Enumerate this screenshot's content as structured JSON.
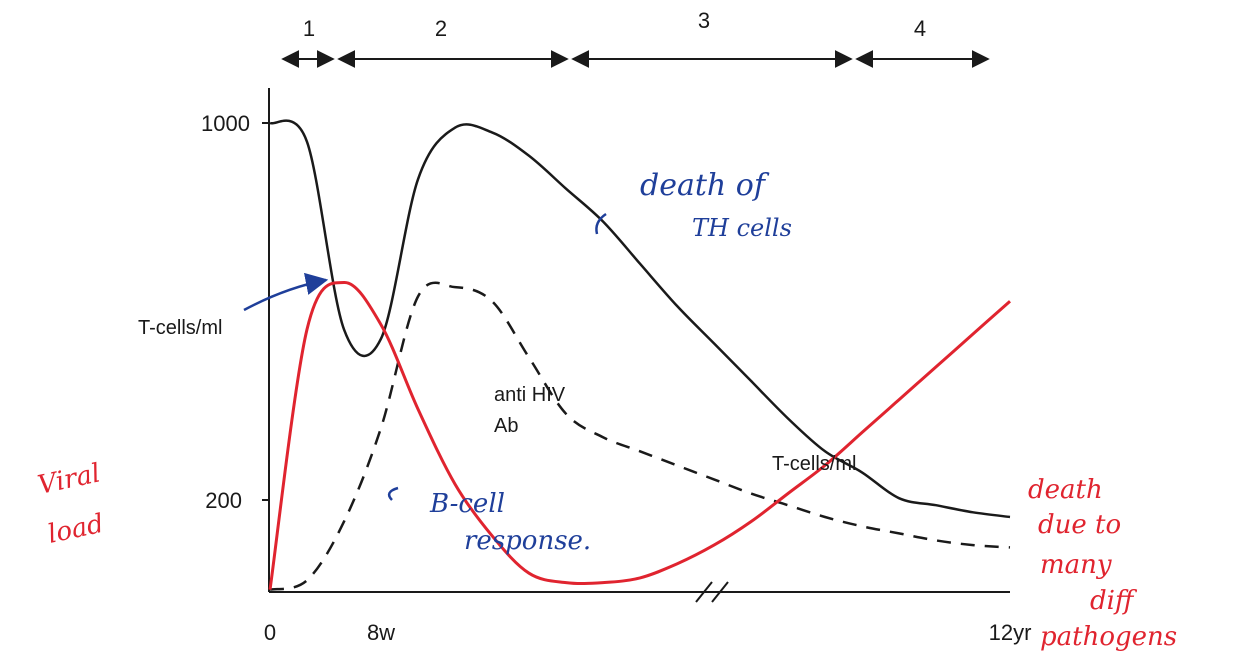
{
  "chart_data": {
    "type": "line",
    "phases": [
      "1",
      "2",
      "3",
      "4"
    ],
    "y_ticks": [
      "1000",
      "200"
    ],
    "x_ticks": [
      "0",
      "8w",
      "12yr"
    ],
    "ylabel": [
      "Viral",
      "load"
    ],
    "x": [
      0,
      1,
      2,
      3,
      4,
      5,
      6,
      7,
      8,
      9,
      10,
      11,
      12,
      13,
      14,
      15,
      16,
      17,
      18,
      19,
      20
    ],
    "series": [
      {
        "name": "T-cells/ml",
        "color": "#1a1a1a",
        "style": "solid",
        "values": [
          1000,
          960,
          560,
          540,
          880,
          990,
          980,
          930,
          860,
          790,
          700,
          610,
          530,
          450,
          370,
          300,
          255,
          200,
          185,
          170,
          160
        ]
      },
      {
        "name": "anti HIV Ab",
        "color": "#1a1a1a",
        "style": "dashed",
        "values": [
          5,
          25,
          150,
          350,
          630,
          650,
          620,
          500,
          380,
          330,
          300,
          270,
          240,
          210,
          185,
          160,
          140,
          125,
          110,
          100,
          95
        ]
      },
      {
        "name": "viral load",
        "color": "#e0242f",
        "style": "solid",
        "values": [
          5,
          560,
          660,
          570,
          390,
          230,
          120,
          40,
          20,
          20,
          30,
          60,
          100,
          150,
          210,
          270,
          340,
          410,
          480,
          550,
          620
        ]
      }
    ],
    "ylim": [
      0,
      1050
    ],
    "annotations": {
      "anti_hiv_ab": [
        "anti HIV",
        "Ab"
      ],
      "tcells_left": "T-cells/ml",
      "tcells_right": "T-cells/ml",
      "death_th": [
        "death of",
        "TH cells"
      ],
      "b_cell": [
        "B-cell",
        "response."
      ],
      "death_end": [
        "death",
        "due to",
        "many",
        "diff",
        "pathogens"
      ]
    },
    "colors": {
      "ink": "#1a1a1a",
      "red": "#e0242f",
      "blue": "#1f3f9a"
    }
  }
}
